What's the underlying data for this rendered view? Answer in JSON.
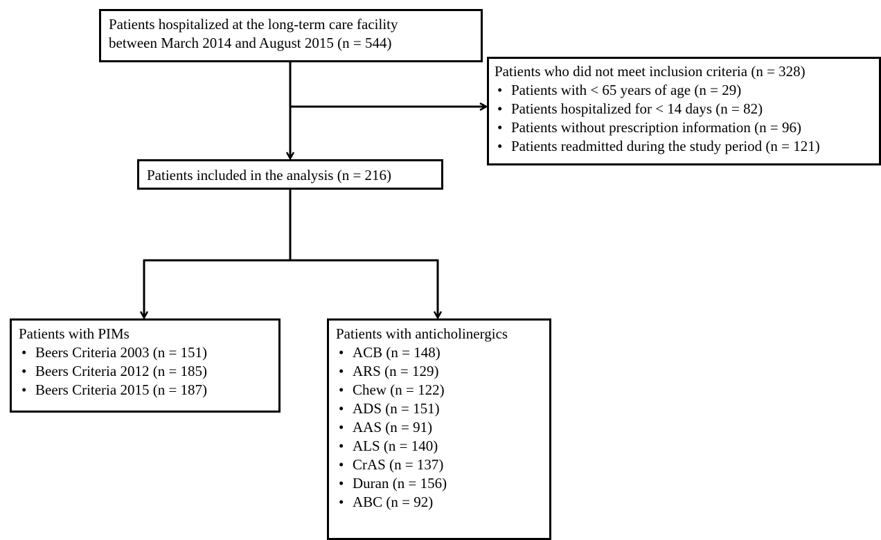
{
  "flowchart": {
    "start": {
      "lines": [
        "Patients hospitalized at the long-term care facility",
        "between March 2014 and August 2015 (n = 544)"
      ]
    },
    "excluded": {
      "title": "Patients who did not meet inclusion criteria (n = 328)",
      "items": [
        "Patients with < 65 years of age (n = 29)",
        "Patients hospitalized for < 14 days (n = 82)",
        "Patients without prescription information (n = 96)",
        "Patients readmitted during the study period (n = 121)"
      ]
    },
    "included": {
      "label": "Patients included in the analysis (n = 216)"
    },
    "pims": {
      "title": "Patients with PIMs",
      "items": [
        "Beers Criteria 2003 (n = 151)",
        "Beers Criteria 2012 (n = 185)",
        "Beers Criteria 2015 (n = 187)"
      ]
    },
    "anticholinergics": {
      "title": "Patients with anticholinergics",
      "items": [
        "ACB (n = 148)",
        "ARS (n = 129)",
        "Chew (n = 122)",
        "ADS (n = 151)",
        "AAS (n = 91)",
        "ALS (n = 140)",
        "CrAS (n = 137)",
        "Duran (n = 156)",
        "ABC (n = 92)"
      ]
    }
  }
}
